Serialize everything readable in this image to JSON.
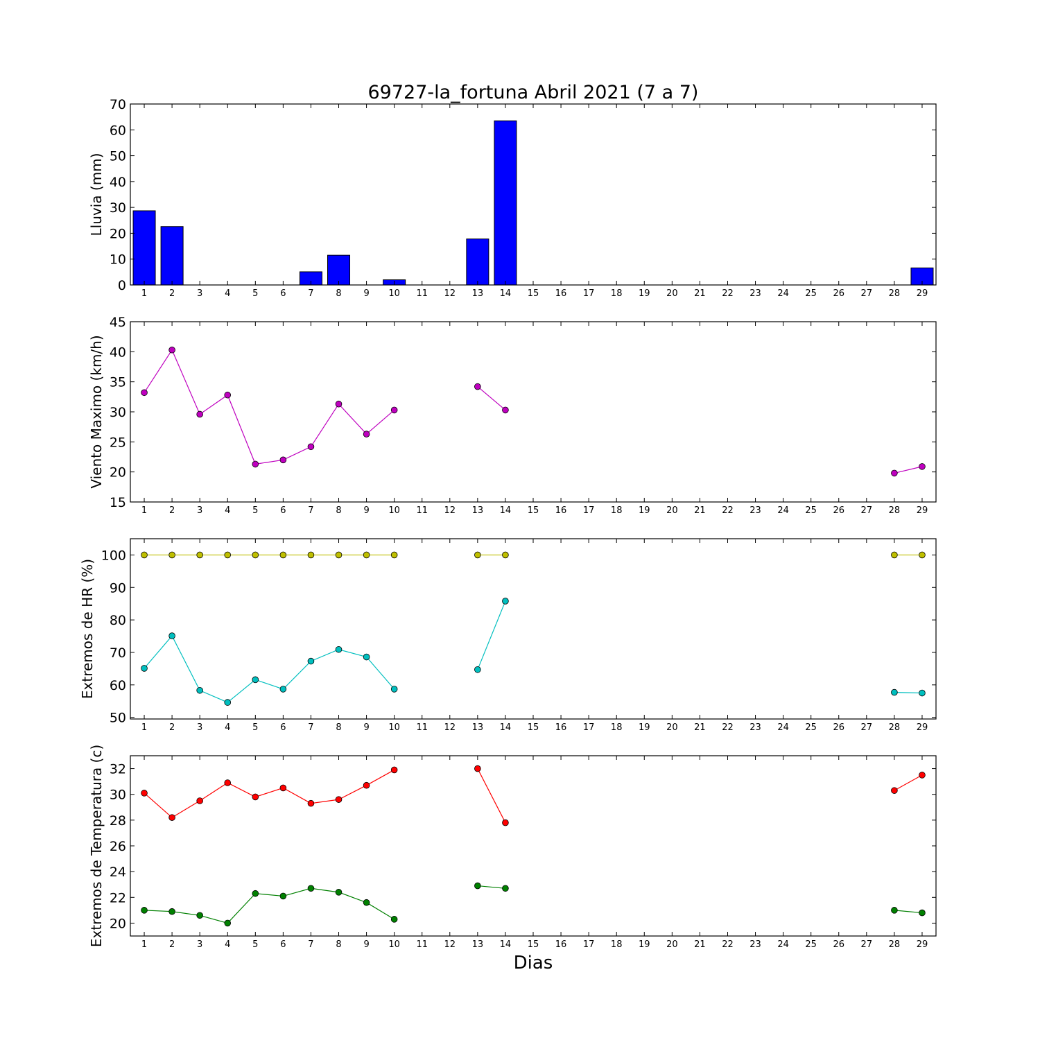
{
  "title": "69727-la_fortuna Abril 2021  (7 a 7)",
  "xlabel": "Dias",
  "chart_data": [
    {
      "type": "bar",
      "ylabel": "Lluvia (mm)",
      "ylim": [
        0,
        70
      ],
      "yticks": [
        0,
        10,
        20,
        30,
        40,
        50,
        60,
        70
      ],
      "xlim": [
        0.5,
        29.5
      ],
      "x": [
        1,
        2,
        3,
        4,
        5,
        6,
        7,
        8,
        9,
        10,
        11,
        12,
        13,
        14,
        15,
        16,
        17,
        18,
        19,
        20,
        21,
        22,
        23,
        24,
        25,
        26,
        27,
        28,
        29
      ],
      "series": [
        {
          "color": "#0000ff",
          "values": [
            28.7,
            22.6,
            0,
            0,
            0,
            0,
            5.1,
            11.5,
            0,
            2.0,
            null,
            null,
            17.8,
            63.5,
            null,
            null,
            null,
            null,
            null,
            null,
            null,
            null,
            null,
            null,
            null,
            null,
            null,
            null,
            6.6
          ]
        }
      ]
    },
    {
      "type": "line",
      "ylabel": "Viento Maximo (km/h)",
      "ylim": [
        15,
        45
      ],
      "yticks": [
        15,
        20,
        25,
        30,
        35,
        40,
        45
      ],
      "xlim": [
        0.5,
        29.5
      ],
      "x": [
        1,
        2,
        3,
        4,
        5,
        6,
        7,
        8,
        9,
        10,
        11,
        12,
        13,
        14,
        15,
        16,
        17,
        18,
        19,
        20,
        21,
        22,
        23,
        24,
        25,
        26,
        27,
        28,
        29
      ],
      "series": [
        {
          "color": "#bf00bf",
          "values": [
            33.2,
            40.3,
            29.6,
            32.8,
            21.3,
            22.0,
            24.2,
            31.3,
            26.3,
            30.3,
            null,
            null,
            34.2,
            30.3,
            null,
            null,
            null,
            null,
            null,
            null,
            null,
            null,
            null,
            null,
            null,
            null,
            null,
            19.8,
            20.9
          ]
        }
      ]
    },
    {
      "type": "line",
      "ylabel": "Extremos de HR (%)",
      "ylim": [
        49.5,
        105
      ],
      "yticks": [
        50,
        60,
        70,
        80,
        90,
        100
      ],
      "xlim": [
        0.5,
        29.5
      ],
      "x": [
        1,
        2,
        3,
        4,
        5,
        6,
        7,
        8,
        9,
        10,
        11,
        12,
        13,
        14,
        15,
        16,
        17,
        18,
        19,
        20,
        21,
        22,
        23,
        24,
        25,
        26,
        27,
        28,
        29
      ],
      "series": [
        {
          "color": "#bfbf00",
          "values": [
            100,
            100,
            100,
            100,
            100,
            100,
            100,
            100,
            100,
            100,
            null,
            null,
            100,
            100,
            null,
            null,
            null,
            null,
            null,
            null,
            null,
            null,
            null,
            null,
            null,
            null,
            null,
            100,
            100
          ]
        },
        {
          "color": "#00bfbf",
          "values": [
            65.1,
            75.1,
            58.3,
            54.6,
            61.6,
            58.7,
            67.3,
            70.9,
            68.6,
            58.7,
            null,
            null,
            64.7,
            85.8,
            null,
            null,
            null,
            null,
            null,
            null,
            null,
            null,
            null,
            null,
            null,
            null,
            null,
            57.7,
            57.5
          ]
        }
      ]
    },
    {
      "type": "line",
      "ylabel": "Extremos de Temperatura (c)",
      "ylim": [
        19,
        33
      ],
      "yticks": [
        20,
        22,
        24,
        26,
        28,
        30,
        32
      ],
      "xlim": [
        0.5,
        29.5
      ],
      "x": [
        1,
        2,
        3,
        4,
        5,
        6,
        7,
        8,
        9,
        10,
        11,
        12,
        13,
        14,
        15,
        16,
        17,
        18,
        19,
        20,
        21,
        22,
        23,
        24,
        25,
        26,
        27,
        28,
        29
      ],
      "series": [
        {
          "color": "#ff0000",
          "values": [
            30.1,
            28.2,
            29.5,
            30.9,
            29.8,
            30.5,
            29.3,
            29.6,
            30.7,
            31.9,
            null,
            null,
            32.0,
            27.8,
            null,
            null,
            null,
            null,
            null,
            null,
            null,
            null,
            null,
            null,
            null,
            null,
            null,
            30.3,
            31.5
          ]
        },
        {
          "color": "#008000",
          "values": [
            21.0,
            20.9,
            20.6,
            20.0,
            22.3,
            22.1,
            22.7,
            22.4,
            21.6,
            20.3,
            null,
            null,
            22.9,
            22.7,
            null,
            null,
            null,
            null,
            null,
            null,
            null,
            null,
            null,
            null,
            null,
            null,
            null,
            21.0,
            20.8
          ]
        }
      ]
    }
  ]
}
